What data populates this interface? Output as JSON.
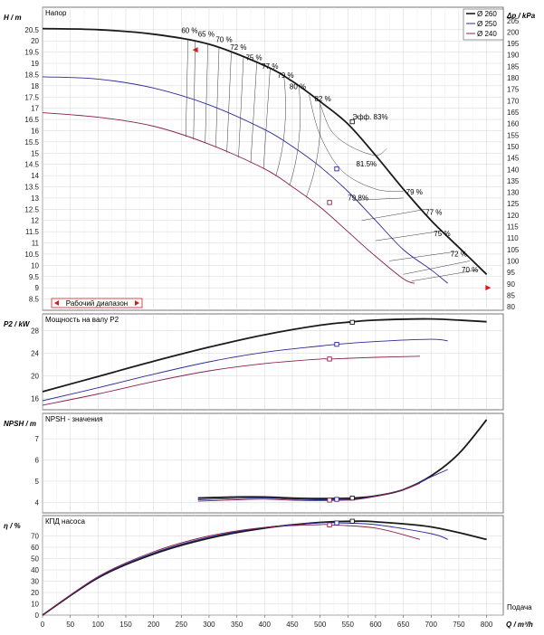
{
  "chart_data": {
    "type": "line",
    "x_axis": {
      "label": "Q / m³/h",
      "right_label": "Подача",
      "range": [
        0,
        830
      ],
      "ticks": [
        0,
        50,
        100,
        150,
        200,
        250,
        300,
        350,
        400,
        450,
        500,
        550,
        600,
        650,
        700,
        750,
        800
      ]
    },
    "legend": [
      {
        "name": "Ø 260",
        "color": "#1a1a1a"
      },
      {
        "name": "Ø 250",
        "color": "#2b2b9a"
      },
      {
        "name": "Ø 240",
        "color": "#8a1f4f"
      }
    ],
    "panels": [
      {
        "id": "head",
        "title": "Напор",
        "ylabel": "H / m",
        "ylabel_right": "Δp / kPa",
        "ylim": [
          8.0,
          21.5
        ],
        "yticks": [
          8.5,
          9,
          9.5,
          10,
          10.5,
          11,
          11.5,
          12,
          12.5,
          13,
          13.5,
          14,
          14.5,
          15,
          15.5,
          16,
          16.5,
          17,
          17.5,
          18,
          18.5,
          19,
          19.5,
          20,
          20.5
        ],
        "yticks_right": [
          80,
          85,
          90,
          95,
          100,
          105,
          110,
          115,
          120,
          125,
          130,
          135,
          140,
          145,
          150,
          155,
          160,
          165,
          170,
          175,
          180,
          185,
          190,
          195,
          200,
          205
        ],
        "series": [
          {
            "name": "Ø 260",
            "x": [
              0,
              100,
              200,
              300,
              400,
              450,
              500,
              550,
              600,
              650,
              700,
              750,
              800
            ],
            "y": [
              20.55,
              20.5,
              20.3,
              19.85,
              18.9,
              18.2,
              17.3,
              16.3,
              14.9,
              13.4,
              12.0,
              10.8,
              9.6
            ]
          },
          {
            "name": "Ø 250",
            "x": [
              0,
              100,
              200,
              300,
              400,
              450,
              500,
              550,
              600,
              650,
              700,
              730
            ],
            "y": [
              18.4,
              18.3,
              17.9,
              17.15,
              16.05,
              15.3,
              14.4,
              13.3,
              12.0,
              10.7,
              9.8,
              9.2
            ]
          },
          {
            "name": "Ø 240",
            "x": [
              0,
              100,
              200,
              300,
              400,
              450,
              500,
              550,
              600,
              650,
              670
            ],
            "y": [
              16.8,
              16.6,
              16.2,
              15.4,
              14.3,
              13.5,
              12.6,
              11.5,
              10.4,
              9.4,
              9.2
            ]
          }
        ],
        "efficiency_labels": [
          "60 %",
          "65 %",
          "70 %",
          "72 %",
          "75 %",
          "77 %",
          "79 %",
          "80 %",
          "82 %",
          "Эфф. 83%",
          "81.5%",
          "79.8%",
          "79 %",
          "77 %",
          "75 %",
          "72 %",
          "70 %"
        ],
        "duty_points": [
          {
            "x": 558,
            "y": 16.4
          },
          {
            "x": 530,
            "y": 14.3
          },
          {
            "x": 517,
            "y": 12.8
          }
        ],
        "operating_range_label": "Рабочий диапазон"
      },
      {
        "id": "power",
        "title": "Мощность на валу P2",
        "ylabel": "P2 / kW",
        "ylim": [
          14,
          31
        ],
        "yticks": [
          16,
          20,
          24,
          28
        ],
        "series": [
          {
            "name": "Ø 260",
            "x": [
              0,
              100,
              200,
              300,
              400,
              500,
              560,
              600,
              700,
              800
            ],
            "y": [
              17.2,
              19.9,
              22.6,
              25.1,
              27.3,
              29.0,
              29.6,
              29.9,
              30.1,
              29.6
            ]
          },
          {
            "name": "Ø 250",
            "x": [
              0,
              100,
              200,
              300,
              400,
              500,
              530,
              600,
              700,
              730
            ],
            "y": [
              15.6,
              17.9,
              20.3,
              22.5,
              24.2,
              25.3,
              25.6,
              26.1,
              26.5,
              26.2
            ]
          },
          {
            "name": "Ø 240",
            "x": [
              0,
              100,
              200,
              300,
              400,
              500,
              517,
              600,
              680
            ],
            "y": [
              14.8,
              16.8,
              19.0,
              20.9,
              22.2,
              23.0,
              23.0,
              23.3,
              23.5
            ]
          }
        ],
        "duty_points": [
          {
            "x": 558,
            "y": 29.5
          },
          {
            "x": 530,
            "y": 25.6
          },
          {
            "x": 517,
            "y": 23.0
          }
        ]
      },
      {
        "id": "npsh",
        "title": "NPSH - значения",
        "ylabel": "NPSH / m",
        "ylim": [
          3.5,
          8.2
        ],
        "yticks": [
          4,
          5,
          6,
          7
        ],
        "series": [
          {
            "name": "Ø 260",
            "x": [
              280,
              350,
              400,
              450,
              500,
              560,
              600,
              650,
              700,
              750,
              800
            ],
            "y": [
              4.2,
              4.25,
              4.25,
              4.2,
              4.18,
              4.2,
              4.3,
              4.6,
              5.25,
              6.3,
              7.9
            ]
          },
          {
            "name": "Ø 250",
            "x": [
              280,
              350,
              400,
              450,
              500,
              560,
              600,
              650,
              700,
              730
            ],
            "y": [
              4.12,
              4.18,
              4.2,
              4.15,
              4.12,
              4.15,
              4.3,
              4.6,
              5.2,
              5.55
            ]
          },
          {
            "name": "Ø 240",
            "x": [
              280,
              350,
              400,
              450,
              500,
              560,
              600,
              650,
              680
            ],
            "y": [
              4.05,
              4.12,
              4.15,
              4.1,
              4.08,
              4.12,
              4.28,
              4.6,
              4.9
            ]
          }
        ],
        "duty_points": [
          {
            "x": 558,
            "y": 4.2
          },
          {
            "x": 530,
            "y": 4.14
          },
          {
            "x": 517,
            "y": 4.1
          }
        ]
      },
      {
        "id": "efficiency",
        "title": "КПД насоса",
        "ylabel": "η / %",
        "ylim": [
          0,
          88
        ],
        "yticks": [
          0,
          10,
          20,
          30,
          40,
          50,
          60,
          70
        ],
        "series": [
          {
            "name": "Ø 260",
            "x": [
              0,
              100,
              200,
              300,
              400,
              500,
              560,
              600,
              700,
              800
            ],
            "y": [
              0,
              33,
              54,
              68,
              77,
              82,
              83,
              82.5,
              78,
              67
            ]
          },
          {
            "name": "Ø 250",
            "x": [
              0,
              100,
              200,
              300,
              400,
              500,
              530,
              600,
              700,
              730
            ],
            "y": [
              0,
              33.5,
              55,
              69,
              77.5,
              81.5,
              81.5,
              80,
              72,
              67
            ]
          },
          {
            "name": "Ø 240",
            "x": [
              0,
              100,
              200,
              300,
              400,
              500,
              517,
              600,
              680
            ],
            "y": [
              0,
              34,
              56,
              70,
              77.5,
              80,
              79.8,
              77,
              67
            ]
          }
        ],
        "duty_points": [
          {
            "x": 558,
            "y": 83
          },
          {
            "x": 530,
            "y": 81.5
          },
          {
            "x": 517,
            "y": 79.8
          }
        ]
      }
    ]
  }
}
